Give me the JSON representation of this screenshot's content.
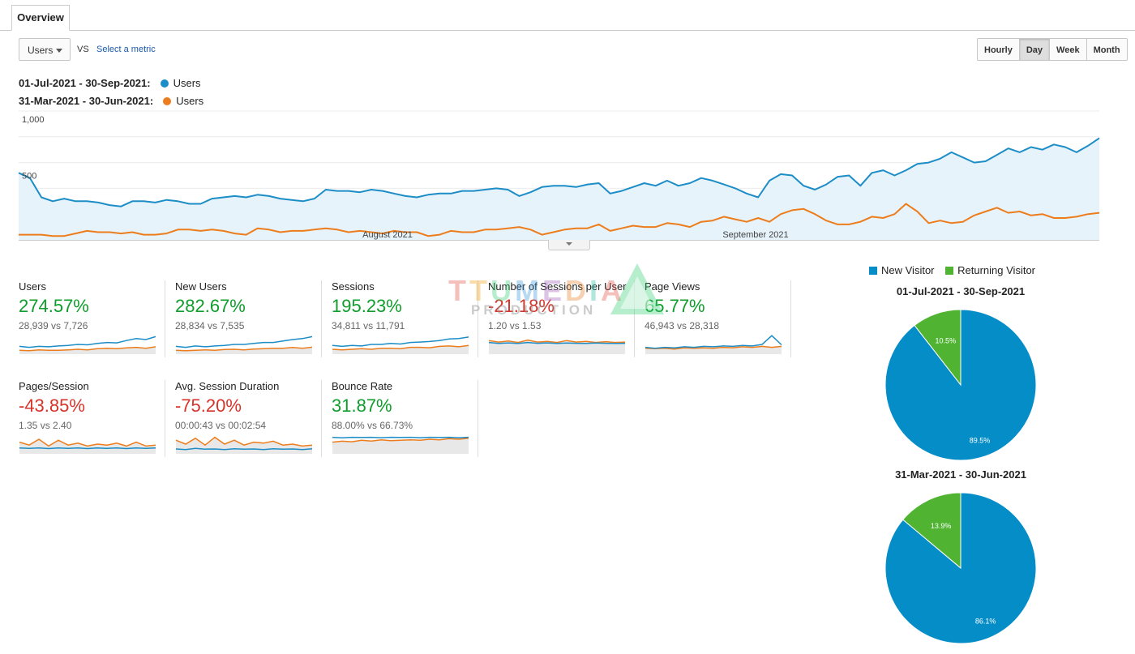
{
  "tabs": [
    {
      "label": "Overview"
    }
  ],
  "toolbar": {
    "metric_value": "Users",
    "vs_label": "VS",
    "select_metric_label": "Select a metric",
    "periods": [
      "Hourly",
      "Day",
      "Week",
      "Month"
    ],
    "active_period": "Day"
  },
  "legend": {
    "current_range": "01-Jul-2021 - 30-Sep-2021:",
    "previous_range": "31-Mar-2021 - 30-Jun-2021:",
    "current_label": "Users",
    "previous_label": "Users"
  },
  "colors": {
    "current": "#1c8dc6",
    "previous": "#ed7d1c",
    "fill": "#e6f3fa",
    "new_visitor": "#058dc7",
    "returning_visitor": "#50b432"
  },
  "chart_data": [
    {
      "type": "line",
      "series": [
        {
          "name": "Users",
          "period": "01-Jul-2021 - 30-Sep-2021",
          "values": [
            520,
            480,
            330,
            300,
            320,
            300,
            300,
            290,
            270,
            260,
            300,
            300,
            290,
            310,
            300,
            280,
            280,
            320,
            330,
            340,
            330,
            350,
            340,
            320,
            310,
            300,
            320,
            390,
            380,
            380,
            370,
            390,
            380,
            360,
            340,
            330,
            350,
            360,
            360,
            380,
            380,
            390,
            400,
            390,
            340,
            370,
            410,
            420,
            420,
            410,
            430,
            440,
            360,
            380,
            410,
            440,
            420,
            460,
            420,
            440,
            480,
            460,
            430,
            400,
            360,
            330,
            460,
            510,
            500,
            420,
            390,
            430,
            490,
            500,
            420,
            520,
            540,
            500,
            540,
            590,
            600,
            630,
            680,
            640,
            600,
            610,
            660,
            710,
            680,
            720,
            700,
            740,
            720,
            680,
            730,
            790
          ]
        },
        {
          "name": "Users",
          "period": "31-Mar-2021 - 30-Jun-2021",
          "values": [
            40,
            40,
            40,
            30,
            30,
            50,
            70,
            60,
            60,
            50,
            60,
            40,
            40,
            50,
            80,
            80,
            70,
            80,
            70,
            50,
            40,
            90,
            80,
            60,
            70,
            70,
            80,
            90,
            80,
            60,
            70,
            60,
            50,
            70,
            60,
            60,
            30,
            40,
            70,
            60,
            60,
            80,
            80,
            90,
            100,
            80,
            40,
            60,
            80,
            90,
            90,
            120,
            70,
            90,
            110,
            100,
            100,
            130,
            120,
            100,
            140,
            150,
            180,
            160,
            140,
            170,
            140,
            200,
            230,
            240,
            200,
            150,
            120,
            120,
            140,
            180,
            170,
            200,
            280,
            220,
            130,
            150,
            130,
            140,
            190,
            220,
            250,
            210,
            220,
            190,
            200,
            170,
            170,
            180,
            200,
            210
          ]
        }
      ],
      "x_labels": [
        "August 2021",
        "September 2021"
      ],
      "y_ticks": [
        1000,
        500
      ],
      "ylim": [
        0,
        1000
      ],
      "grid": true
    },
    {
      "type": "pie",
      "title": "01-Jul-2021 - 30-Sep-2021",
      "categories": [
        "New Visitor",
        "Returning Visitor"
      ],
      "values": [
        89.5,
        10.5
      ],
      "labels": [
        "89.5%",
        "10.5%"
      ],
      "legend": "top"
    },
    {
      "type": "pie",
      "title": "31-Mar-2021 - 30-Jun-2021",
      "categories": [
        "New Visitor",
        "Returning Visitor"
      ],
      "values": [
        86.1,
        13.9
      ],
      "labels": [
        "86.1%",
        "13.9%"
      ]
    }
  ],
  "scorecards": [
    {
      "title": "Users",
      "change": "274.57%",
      "trend": "pos",
      "comparison": "28,939 vs 7,726",
      "spark_current": [
        0.4,
        0.35,
        0.4,
        0.38,
        0.42,
        0.45,
        0.5,
        0.48,
        0.55,
        0.6,
        0.58,
        0.7,
        0.8,
        0.75,
        0.9
      ],
      "spark_previous": [
        0.2,
        0.18,
        0.22,
        0.2,
        0.2,
        0.22,
        0.25,
        0.22,
        0.28,
        0.3,
        0.28,
        0.32,
        0.35,
        0.3,
        0.38
      ]
    },
    {
      "title": "New Users",
      "change": "282.67%",
      "trend": "pos",
      "comparison": "28,834 vs 7,535",
      "spark_current": [
        0.4,
        0.35,
        0.42,
        0.38,
        0.42,
        0.45,
        0.5,
        0.5,
        0.55,
        0.6,
        0.6,
        0.68,
        0.75,
        0.8,
        0.9
      ],
      "spark_previous": [
        0.2,
        0.18,
        0.2,
        0.22,
        0.2,
        0.24,
        0.25,
        0.22,
        0.26,
        0.28,
        0.3,
        0.3,
        0.34,
        0.3,
        0.36
      ]
    },
    {
      "title": "Sessions",
      "change": "195.23%",
      "trend": "pos",
      "comparison": "34,811 vs 11,791",
      "spark_current": [
        0.45,
        0.4,
        0.45,
        0.42,
        0.5,
        0.5,
        0.55,
        0.52,
        0.6,
        0.62,
        0.65,
        0.7,
        0.78,
        0.8,
        0.88
      ],
      "spark_previous": [
        0.25,
        0.22,
        0.25,
        0.28,
        0.25,
        0.3,
        0.3,
        0.28,
        0.35,
        0.35,
        0.33,
        0.4,
        0.42,
        0.38,
        0.45
      ]
    },
    {
      "title": "Number of Sessions per User",
      "change": "-21.18%",
      "trend": "neg",
      "comparison": "1.20 vs 1.53",
      "spark_current": [
        0.6,
        0.55,
        0.58,
        0.55,
        0.6,
        0.56,
        0.58,
        0.55,
        0.57,
        0.56,
        0.55,
        0.57,
        0.56,
        0.55,
        0.56
      ],
      "spark_previous": [
        0.7,
        0.62,
        0.68,
        0.6,
        0.72,
        0.62,
        0.66,
        0.6,
        0.7,
        0.62,
        0.66,
        0.6,
        0.64,
        0.6,
        0.62
      ]
    },
    {
      "title": "Page Views",
      "change": "65.77%",
      "trend": "pos",
      "comparison": "46,943 vs 28,318",
      "spark_current": [
        0.35,
        0.3,
        0.35,
        0.32,
        0.38,
        0.35,
        0.4,
        0.38,
        0.42,
        0.4,
        0.45,
        0.42,
        0.5,
        0.95,
        0.48
      ],
      "spark_previous": [
        0.3,
        0.28,
        0.3,
        0.26,
        0.32,
        0.3,
        0.32,
        0.3,
        0.35,
        0.33,
        0.38,
        0.35,
        0.4,
        0.35,
        0.4
      ]
    },
    {
      "title": "Pages/Session",
      "change": "-43.85%",
      "trend": "neg",
      "comparison": "1.35 vs 2.40",
      "spark_current": [
        0.3,
        0.28,
        0.3,
        0.27,
        0.3,
        0.28,
        0.3,
        0.27,
        0.3,
        0.28,
        0.3,
        0.27,
        0.3,
        0.28,
        0.3
      ],
      "spark_previous": [
        0.6,
        0.45,
        0.75,
        0.4,
        0.7,
        0.45,
        0.55,
        0.4,
        0.5,
        0.45,
        0.55,
        0.4,
        0.6,
        0.4,
        0.45
      ]
    },
    {
      "title": "Avg. Session Duration",
      "change": "-75.20%",
      "trend": "neg",
      "comparison": "00:00:43 vs 00:02:54",
      "spark_current": [
        0.25,
        0.22,
        0.28,
        0.24,
        0.25,
        0.22,
        0.26,
        0.24,
        0.25,
        0.22,
        0.26,
        0.24,
        0.25,
        0.22,
        0.26
      ],
      "spark_previous": [
        0.7,
        0.5,
        0.8,
        0.45,
        0.85,
        0.5,
        0.7,
        0.45,
        0.6,
        0.55,
        0.65,
        0.45,
        0.5,
        0.4,
        0.45
      ]
    },
    {
      "title": "Bounce Rate",
      "change": "31.87%",
      "trend": "pos",
      "comparison": "88.00% vs 66.73%",
      "spark_current": [
        0.85,
        0.82,
        0.85,
        0.84,
        0.85,
        0.83,
        0.85,
        0.84,
        0.85,
        0.83,
        0.85,
        0.84,
        0.85,
        0.83,
        0.85
      ],
      "spark_previous": [
        0.6,
        0.65,
        0.62,
        0.7,
        0.66,
        0.72,
        0.68,
        0.7,
        0.72,
        0.7,
        0.75,
        0.72,
        0.78,
        0.75,
        0.8
      ]
    }
  ],
  "watermark": {
    "main": "TTUMEDIA",
    "sub": "PRODUCTION"
  }
}
